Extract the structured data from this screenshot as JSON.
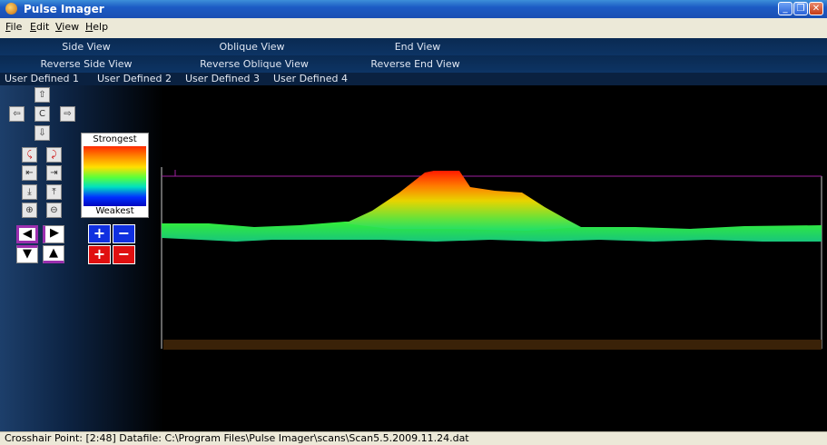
{
  "window": {
    "title": "Pulse Imager",
    "minimize": "_",
    "restore": "❐",
    "close": "✕"
  },
  "menu": [
    "File",
    "Edit",
    "View",
    "Help"
  ],
  "views_row1": [
    "Side View",
    "Oblique View",
    "End View"
  ],
  "views_row2": [
    "Reverse Side View",
    "Reverse Oblique View",
    "Reverse End View"
  ],
  "user_views": [
    "User Defined 1",
    "User Defined 2",
    "User Defined 3",
    "User Defined 4"
  ],
  "legend": {
    "strongest": "Strongest",
    "weakest": "Weakest"
  },
  "controls": {
    "center": "C",
    "plus": "+",
    "minus": "−"
  },
  "status": {
    "text": "Crosshair Point: [2:48]  Datafile: C:\\Program Files\\Pulse Imager\\scans\\Scan5.5.2009.11.24.dat"
  },
  "colors": {
    "strong": "#ff2a00",
    "weak": "#0008c0",
    "plot_line": "#a020a0",
    "ground": "#3a2208"
  }
}
